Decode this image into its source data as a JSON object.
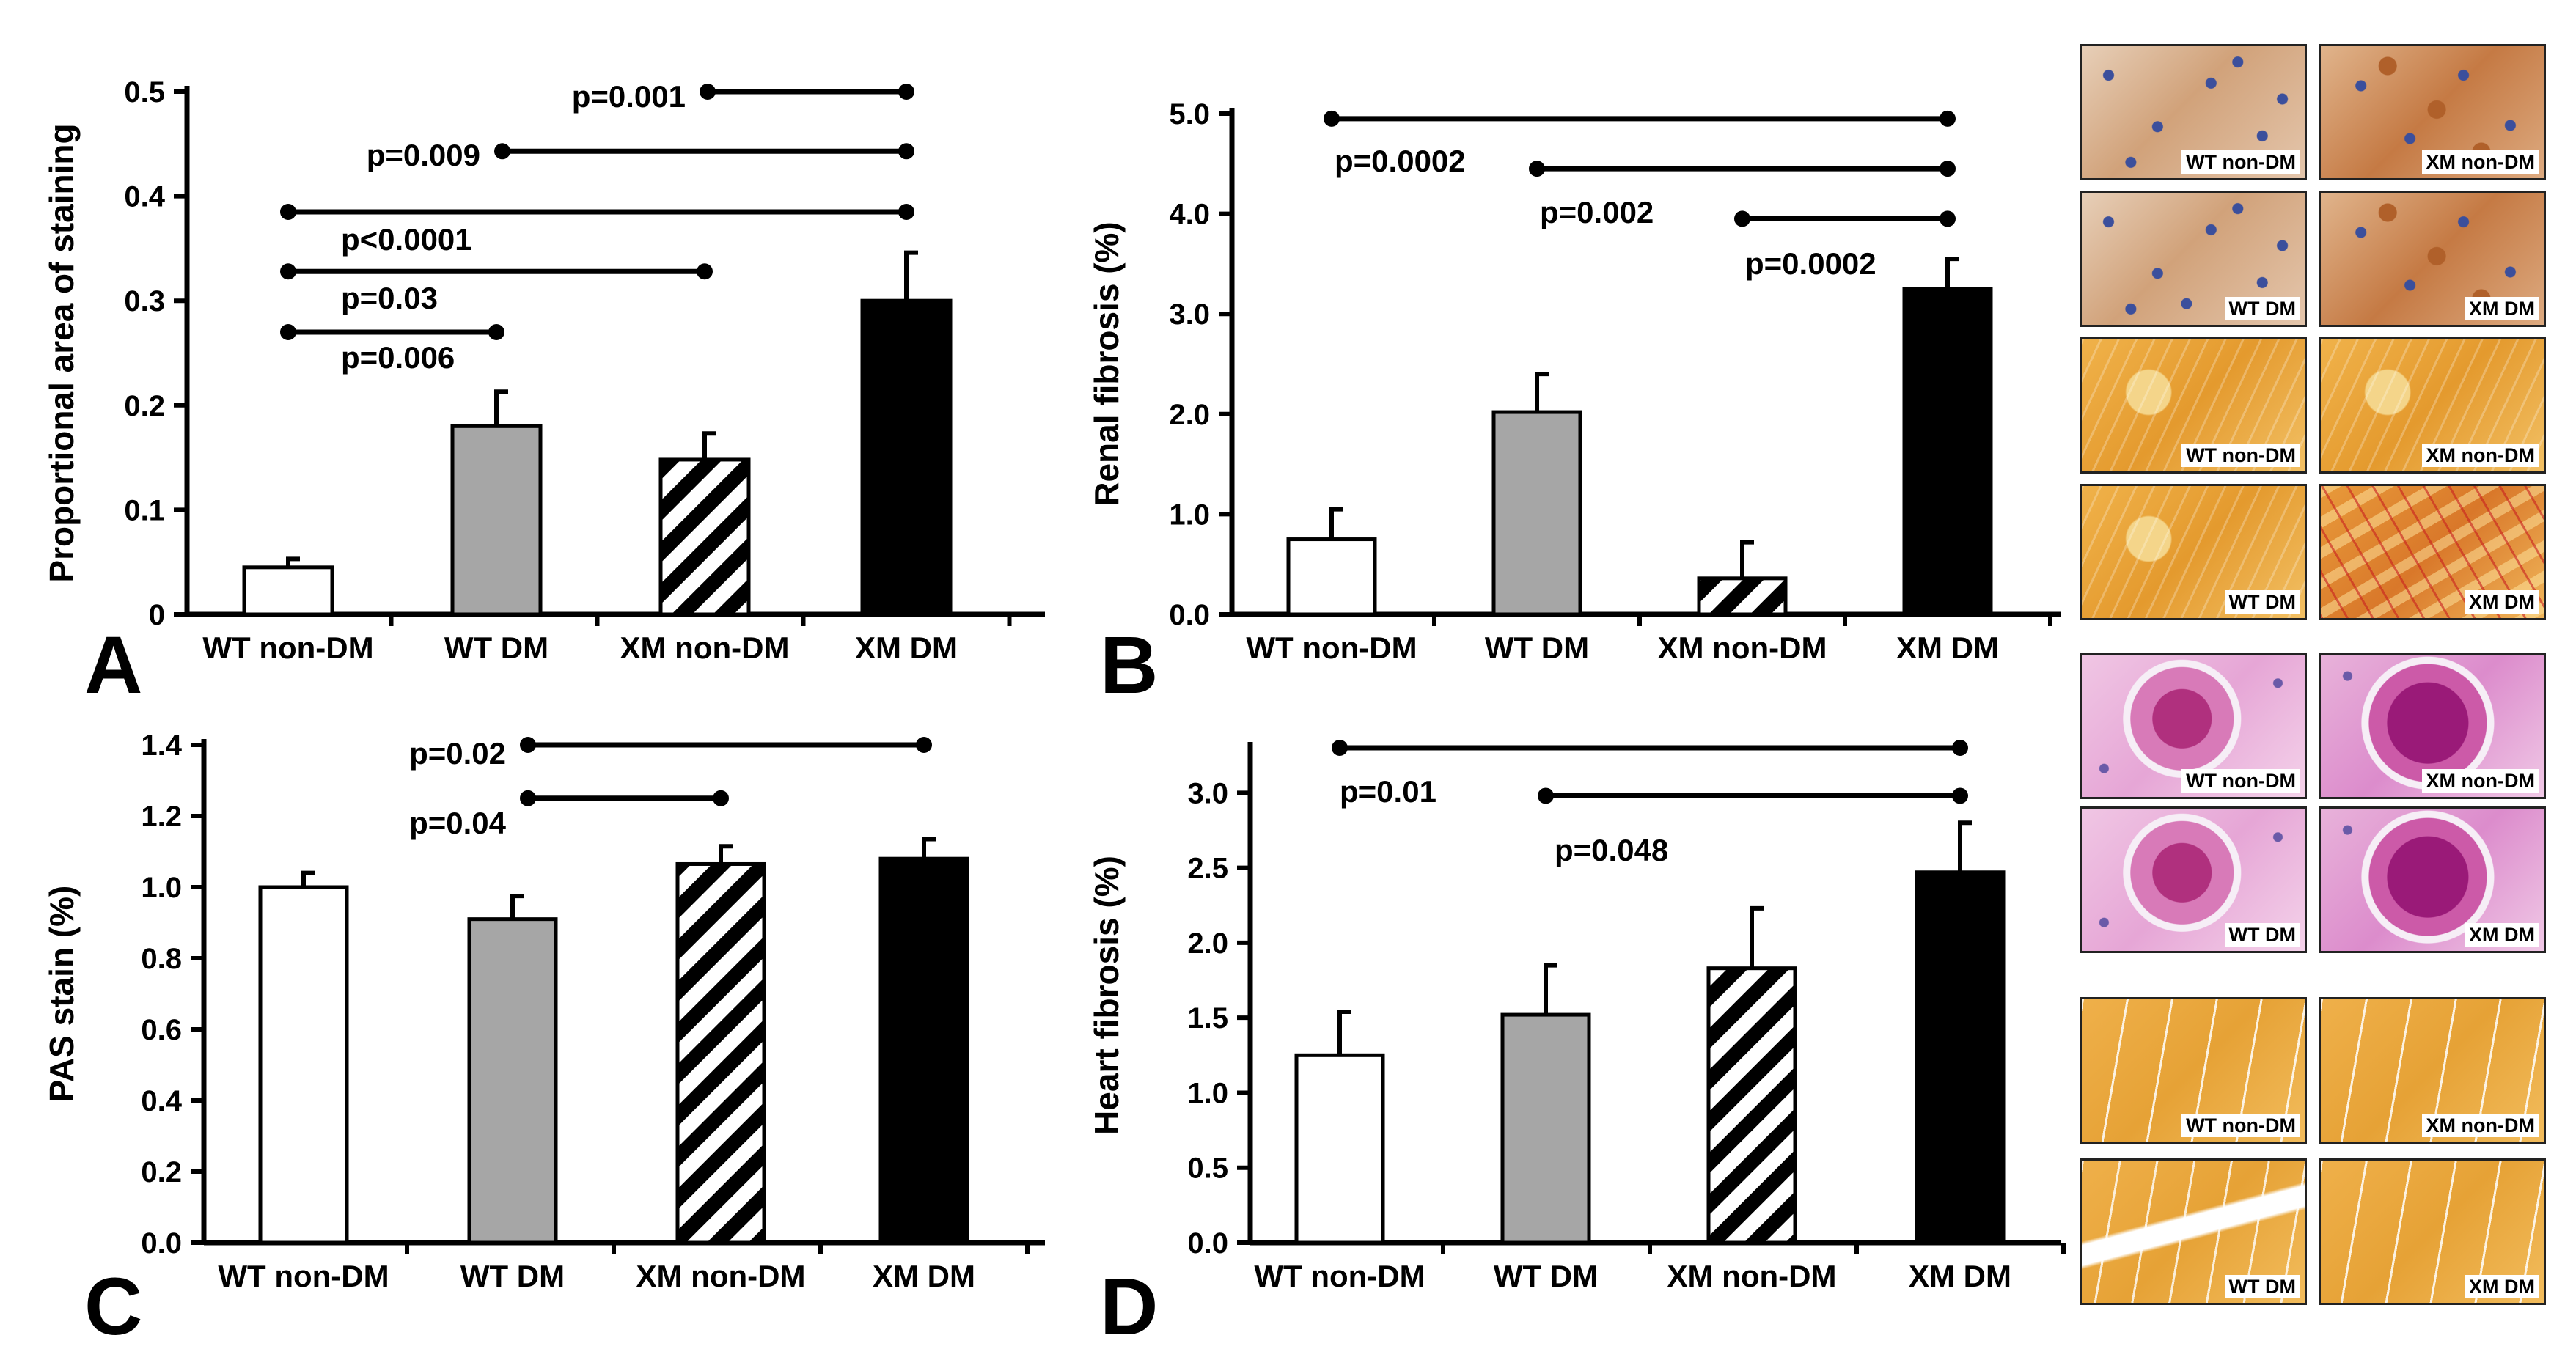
{
  "chart_data": [
    {
      "panel": "A",
      "type": "bar",
      "ylabel": "Proportional area of staining",
      "categories": [
        "WT non-DM",
        "WT DM",
        "XM non-DM",
        "XM DM"
      ],
      "values": [
        0.045,
        0.18,
        0.148,
        0.3
      ],
      "errors": [
        0.008,
        0.033,
        0.025,
        0.046
      ],
      "ylim": [
        0,
        0.5
      ],
      "yticks": [
        0,
        0.1,
        0.2,
        0.3,
        0.4,
        0.5
      ],
      "ytick_labels": [
        "0",
        "0.1",
        "0.2",
        "0.3",
        "0.4",
        "0.5"
      ],
      "comparisons": [
        {
          "label": "p=0.001",
          "from": 2,
          "to": 3,
          "level": 0.5
        },
        {
          "label": "p=0.009",
          "from": 1,
          "to": 3,
          "level": 0.443
        },
        {
          "label": "p<0.0001",
          "from": 0,
          "to": 3,
          "level": 0.385
        },
        {
          "label": "p=0.03",
          "from": 0,
          "to": 2,
          "level": 0.328
        },
        {
          "label": "p=0.006",
          "from": 0,
          "to": 1,
          "level": 0.27
        }
      ]
    },
    {
      "panel": "B",
      "type": "bar",
      "ylabel": "Renal fibrosis (%)",
      "categories": [
        "WT non-DM",
        "WT DM",
        "XM non-DM",
        "XM DM"
      ],
      "values": [
        0.75,
        2.02,
        0.36,
        3.25
      ],
      "errors": [
        0.3,
        0.38,
        0.36,
        0.3
      ],
      "ylim": [
        0,
        5
      ],
      "yticks": [
        0,
        1,
        2,
        3,
        4,
        5
      ],
      "ytick_labels": [
        "0.0",
        "1.0",
        "2.0",
        "3.0",
        "4.0",
        "5.0"
      ],
      "comparisons": [
        {
          "label": "p=0.0002",
          "from": 0,
          "to": 3,
          "level": 4.95
        },
        {
          "label": "p=0.002",
          "from": 1,
          "to": 3,
          "level": 4.45
        },
        {
          "label": "p=0.0002",
          "from": 2,
          "to": 3,
          "level": 3.95
        }
      ]
    },
    {
      "panel": "C",
      "type": "bar",
      "ylabel": "PAS stain (%)",
      "categories": [
        "WT non-DM",
        "WT DM",
        "XM non-DM",
        "XM DM"
      ],
      "values": [
        1.0,
        0.91,
        1.065,
        1.08
      ],
      "errors": [
        0.04,
        0.065,
        0.05,
        0.055
      ],
      "ylim": [
        0,
        1.4
      ],
      "yticks": [
        0,
        0.2,
        0.4,
        0.6,
        0.8,
        1.0,
        1.2,
        1.4
      ],
      "ytick_labels": [
        "0.0",
        "0.2",
        "0.4",
        "0.6",
        "0.8",
        "1.0",
        "1.2",
        "1.4"
      ],
      "comparisons": [
        {
          "label": "p=0.02",
          "from": 1,
          "to": 3,
          "level": 1.4
        },
        {
          "label": "p=0.04",
          "from": 1,
          "to": 2,
          "level": 1.25
        }
      ]
    },
    {
      "panel": "D",
      "type": "bar",
      "ylabel": "Heart fibrosis (%)",
      "categories": [
        "WT non-DM",
        "WT DM",
        "XM non-DM",
        "XM DM"
      ],
      "values": [
        1.25,
        1.52,
        1.83,
        2.47
      ],
      "errors": [
        0.29,
        0.33,
        0.4,
        0.33
      ],
      "ylim": [
        0,
        3.3
      ],
      "yticks": [
        0,
        0.5,
        1,
        1.5,
        2,
        2.5,
        3
      ],
      "ytick_labels": [
        "0.0",
        "0.5",
        "1.0",
        "1.5",
        "2.0",
        "2.5",
        "3.0"
      ],
      "comparisons": [
        {
          "label": "p=0.01",
          "from": 0,
          "to": 3,
          "level": 3.3
        },
        {
          "label": "p=0.048",
          "from": 1,
          "to": 3,
          "level": 2.98
        }
      ]
    }
  ],
  "bar_styles": [
    "#ffffff",
    "#a6a6a6",
    "hatched",
    "#000000"
  ],
  "micrographs": [
    {
      "label": "WT non-DM",
      "stain": "ihc"
    },
    {
      "label": "XM non-DM",
      "stain": "ihc-strong"
    },
    {
      "label": "WT DM",
      "stain": "ihc"
    },
    {
      "label": "XM DM",
      "stain": "ihc-strong"
    },
    {
      "label": "WT non-DM",
      "stain": "sirius"
    },
    {
      "label": "XM non-DM",
      "stain": "sirius"
    },
    {
      "label": "WT DM",
      "stain": "sirius"
    },
    {
      "label": "XM DM",
      "stain": "sirius-red"
    },
    {
      "label": "WT non-DM",
      "stain": "pas"
    },
    {
      "label": "XM non-DM",
      "stain": "pas-strong"
    },
    {
      "label": "WT DM",
      "stain": "pas"
    },
    {
      "label": "XM DM",
      "stain": "pas-strong"
    },
    {
      "label": "WT non-DM",
      "stain": "heart"
    },
    {
      "label": "XM non-DM",
      "stain": "heart"
    },
    {
      "label": "WT DM",
      "stain": "heart-gap"
    },
    {
      "label": "XM DM",
      "stain": "heart"
    }
  ]
}
